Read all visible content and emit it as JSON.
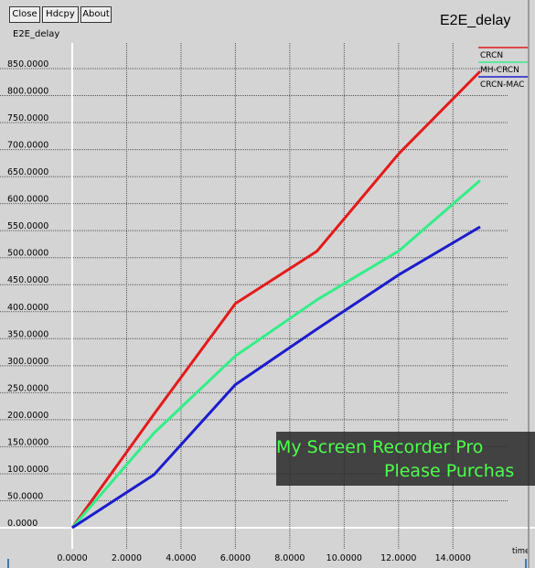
{
  "window": {
    "buttons": {
      "close": "Close",
      "hdcpy": "Hdcpy",
      "about": "About"
    },
    "subtitle": "E2E_delay",
    "graph_title": "E2E_delay"
  },
  "watermark": {
    "line1": "My Screen Recorder Pro",
    "line2": "Please Purchas"
  },
  "chart_data": {
    "type": "line",
    "title": "E2E_delay",
    "xlabel": "time",
    "ylabel": "",
    "xlim": [
      0,
      15
    ],
    "ylim": [
      0,
      850
    ],
    "x_ticks": [
      {
        "v": 0,
        "label": "0.0000"
      },
      {
        "v": 2,
        "label": "2.0000"
      },
      {
        "v": 4,
        "label": "4.0000"
      },
      {
        "v": 6,
        "label": "6.0000"
      },
      {
        "v": 8,
        "label": "8.0000"
      },
      {
        "v": 10,
        "label": "10.0000"
      },
      {
        "v": 12,
        "label": "12.0000"
      },
      {
        "v": 14,
        "label": "14.0000"
      }
    ],
    "y_ticks": [
      {
        "v": 0,
        "label": "0.0000"
      },
      {
        "v": 50,
        "label": "50.0000"
      },
      {
        "v": 100,
        "label": "100.0000"
      },
      {
        "v": 150,
        "label": "150.0000"
      },
      {
        "v": 200,
        "label": "200.0000"
      },
      {
        "v": 250,
        "label": "250.0000"
      },
      {
        "v": 300,
        "label": "300.0000"
      },
      {
        "v": 350,
        "label": "350.0000"
      },
      {
        "v": 400,
        "label": "400.0000"
      },
      {
        "v": 450,
        "label": "450.0000"
      },
      {
        "v": 500,
        "label": "500.0000"
      },
      {
        "v": 550,
        "label": "550.0000"
      },
      {
        "v": 600,
        "label": "600.0000"
      },
      {
        "v": 650,
        "label": "650.0000"
      },
      {
        "v": 700,
        "label": "700.0000"
      },
      {
        "v": 750,
        "label": "750.0000"
      },
      {
        "v": 800,
        "label": "800.0000"
      },
      {
        "v": 850,
        "label": "850.0000"
      }
    ],
    "grid": true,
    "legend_position": "right",
    "series": [
      {
        "name": "CRCN",
        "color": "#e41a1a",
        "points": [
          [
            0,
            0
          ],
          [
            3,
            210
          ],
          [
            6,
            415
          ],
          [
            9,
            512
          ],
          [
            12,
            692
          ],
          [
            15,
            845
          ]
        ]
      },
      {
        "name": "MH-CRCN",
        "color": "#33ee88",
        "points": [
          [
            0,
            0
          ],
          [
            3,
            175
          ],
          [
            6,
            318
          ],
          [
            9,
            422
          ],
          [
            12,
            512
          ],
          [
            15,
            643
          ]
        ]
      },
      {
        "name": "CRCN-MAC",
        "color": "#1c1ccc",
        "points": [
          [
            0,
            0
          ],
          [
            3,
            98
          ],
          [
            6,
            265
          ],
          [
            9,
            368
          ],
          [
            12,
            468
          ],
          [
            15,
            557
          ]
        ]
      }
    ]
  }
}
